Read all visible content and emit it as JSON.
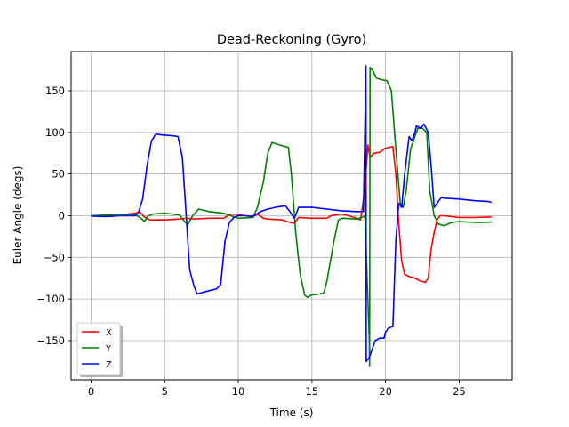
{
  "chart_data": {
    "type": "line",
    "title": "Dead-Reckoning (Gyro)",
    "xlabel": "Time (s)",
    "ylabel": "Euler Angle (degs)",
    "xlim": [
      -1.36,
      28.6
    ],
    "ylim": [
      -197,
      197
    ],
    "xticks": [
      0,
      5,
      10,
      15,
      20,
      25
    ],
    "yticks": [
      -150,
      -100,
      -50,
      0,
      50,
      100,
      150
    ],
    "grid": true,
    "legend": {
      "position": "lower-left",
      "entries": [
        "X",
        "Y",
        "Z"
      ]
    },
    "colors": {
      "X": "#ff0000",
      "Y": "#008000",
      "Z": "#0000ff"
    },
    "series": [
      {
        "name": "X",
        "color": "#ff0000",
        "points": [
          [
            0,
            0
          ],
          [
            1,
            0.5
          ],
          [
            2,
            1
          ],
          [
            3,
            3
          ],
          [
            3.3,
            5
          ],
          [
            3.6,
            -1
          ],
          [
            4,
            -5
          ],
          [
            5,
            -5
          ],
          [
            6,
            -4
          ],
          [
            6.5,
            -3
          ],
          [
            7,
            -4
          ],
          [
            8,
            -3
          ],
          [
            9,
            -3
          ],
          [
            9.5,
            2
          ],
          [
            10,
            1.5
          ],
          [
            10.5,
            0
          ],
          [
            11,
            -1
          ],
          [
            11.3,
            2
          ],
          [
            11.7,
            -3
          ],
          [
            12,
            -4
          ],
          [
            13,
            -5
          ],
          [
            13.5,
            -8
          ],
          [
            13.8,
            -9
          ],
          [
            14.1,
            -2
          ],
          [
            15,
            -3
          ],
          [
            16,
            -3
          ],
          [
            16.3,
            0
          ],
          [
            17,
            2
          ],
          [
            17.5,
            0
          ],
          [
            18,
            -3
          ],
          [
            18.3,
            -5
          ],
          [
            18.5,
            20
          ],
          [
            18.7,
            60
          ],
          [
            18.8,
            85
          ],
          [
            18.95,
            70
          ],
          [
            19.2,
            75
          ],
          [
            19.6,
            76
          ],
          [
            20,
            81
          ],
          [
            20.5,
            83
          ],
          [
            20.7,
            50
          ],
          [
            20.9,
            -10
          ],
          [
            21.1,
            -55
          ],
          [
            21.3,
            -70
          ],
          [
            21.6,
            -73
          ],
          [
            22,
            -75
          ],
          [
            22.3,
            -78
          ],
          [
            22.7,
            -80
          ],
          [
            22.9,
            -75
          ],
          [
            23.1,
            -40
          ],
          [
            23.3,
            -20
          ],
          [
            23.5,
            -5
          ],
          [
            23.7,
            0
          ],
          [
            24,
            0
          ],
          [
            25,
            -2
          ],
          [
            26,
            -2
          ],
          [
            27,
            -1.5
          ],
          [
            27.2,
            -1.5
          ]
        ]
      },
      {
        "name": "Y",
        "color": "#008000",
        "points": [
          [
            0,
            0
          ],
          [
            1,
            1
          ],
          [
            2,
            1
          ],
          [
            3,
            1
          ],
          [
            3.4,
            -3
          ],
          [
            3.6,
            -7
          ],
          [
            3.9,
            0
          ],
          [
            4.2,
            2
          ],
          [
            5,
            3
          ],
          [
            6,
            1
          ],
          [
            6.4,
            -8
          ],
          [
            6.6,
            -10
          ],
          [
            6.9,
            0
          ],
          [
            7.3,
            8
          ],
          [
            8,
            5
          ],
          [
            9,
            3
          ],
          [
            9.5,
            0
          ],
          [
            10,
            -3
          ],
          [
            11,
            -2
          ],
          [
            11.3,
            10
          ],
          [
            11.7,
            40
          ],
          [
            12,
            75
          ],
          [
            12.3,
            88
          ],
          [
            12.8,
            85
          ],
          [
            13,
            84
          ],
          [
            13.4,
            82
          ],
          [
            13.6,
            50
          ],
          [
            13.9,
            -20
          ],
          [
            14.2,
            -70
          ],
          [
            14.5,
            -95
          ],
          [
            14.7,
            -98
          ],
          [
            15,
            -95
          ],
          [
            15.5,
            -94
          ],
          [
            15.8,
            -93
          ],
          [
            16,
            -80
          ],
          [
            16.2,
            -60
          ],
          [
            16.5,
            -30
          ],
          [
            16.8,
            -5
          ],
          [
            17.1,
            -3
          ],
          [
            18,
            -4
          ],
          [
            18.4,
            -2
          ],
          [
            18.6,
            0
          ],
          [
            18.9,
            -150
          ],
          [
            18.92,
            -180
          ],
          [
            18.95,
            178
          ],
          [
            19.1,
            175
          ],
          [
            19.4,
            165
          ],
          [
            19.8,
            163
          ],
          [
            20.1,
            162
          ],
          [
            20.4,
            150
          ],
          [
            20.7,
            80
          ],
          [
            21,
            15
          ],
          [
            21.2,
            10
          ],
          [
            21.4,
            30
          ],
          [
            21.7,
            80
          ],
          [
            22,
            95
          ],
          [
            22.2,
            105
          ],
          [
            22.5,
            105
          ],
          [
            22.8,
            100
          ],
          [
            23,
            30
          ],
          [
            23.3,
            0
          ],
          [
            23.6,
            -10
          ],
          [
            24,
            -12
          ],
          [
            24.5,
            -8
          ],
          [
            25,
            -7
          ],
          [
            26,
            -8
          ],
          [
            27,
            -8
          ],
          [
            27.2,
            -7
          ]
        ]
      },
      {
        "name": "Z",
        "color": "#0000ff",
        "points": [
          [
            0,
            -0.5
          ],
          [
            1,
            -1
          ],
          [
            2,
            0
          ],
          [
            3,
            0
          ],
          [
            3.2,
            3
          ],
          [
            3.5,
            20
          ],
          [
            3.8,
            60
          ],
          [
            4.1,
            90
          ],
          [
            4.4,
            98
          ],
          [
            4.8,
            97
          ],
          [
            5.5,
            96
          ],
          [
            5.9,
            95
          ],
          [
            6.2,
            70
          ],
          [
            6.5,
            -10
          ],
          [
            6.7,
            -65
          ],
          [
            7,
            -85
          ],
          [
            7.2,
            -94
          ],
          [
            7.6,
            -92
          ],
          [
            8,
            -90
          ],
          [
            8.5,
            -88
          ],
          [
            8.8,
            -83
          ],
          [
            9.1,
            -30
          ],
          [
            9.4,
            -8
          ],
          [
            9.7,
            -2
          ],
          [
            10,
            0
          ],
          [
            10.5,
            0
          ],
          [
            11,
            -1
          ],
          [
            11.5,
            5
          ],
          [
            12,
            8
          ],
          [
            12.5,
            10
          ],
          [
            13.2,
            12
          ],
          [
            13.5,
            5
          ],
          [
            13.8,
            -3
          ],
          [
            14.1,
            10
          ],
          [
            15,
            10
          ],
          [
            16,
            8
          ],
          [
            17,
            6
          ],
          [
            18,
            5
          ],
          [
            18.5,
            5
          ],
          [
            18.67,
            180
          ],
          [
            18.69,
            -175
          ],
          [
            18.9,
            -170
          ],
          [
            19.1,
            -160
          ],
          [
            19.3,
            -150
          ],
          [
            19.6,
            -147
          ],
          [
            19.9,
            -147
          ],
          [
            20,
            -140
          ],
          [
            20.2,
            -135
          ],
          [
            20.5,
            -133
          ],
          [
            20.7,
            -30
          ],
          [
            20.9,
            15
          ],
          [
            21.1,
            10
          ],
          [
            21.3,
            50
          ],
          [
            21.6,
            95
          ],
          [
            21.8,
            90
          ],
          [
            22,
            100
          ],
          [
            22.1,
            108
          ],
          [
            22.4,
            105
          ],
          [
            22.6,
            110
          ],
          [
            22.9,
            100
          ],
          [
            23.1,
            60
          ],
          [
            23.3,
            10
          ],
          [
            23.5,
            15
          ],
          [
            23.8,
            22
          ],
          [
            24,
            21
          ],
          [
            25,
            20
          ],
          [
            26,
            18
          ],
          [
            27,
            17
          ],
          [
            27.2,
            16
          ]
        ]
      }
    ]
  }
}
